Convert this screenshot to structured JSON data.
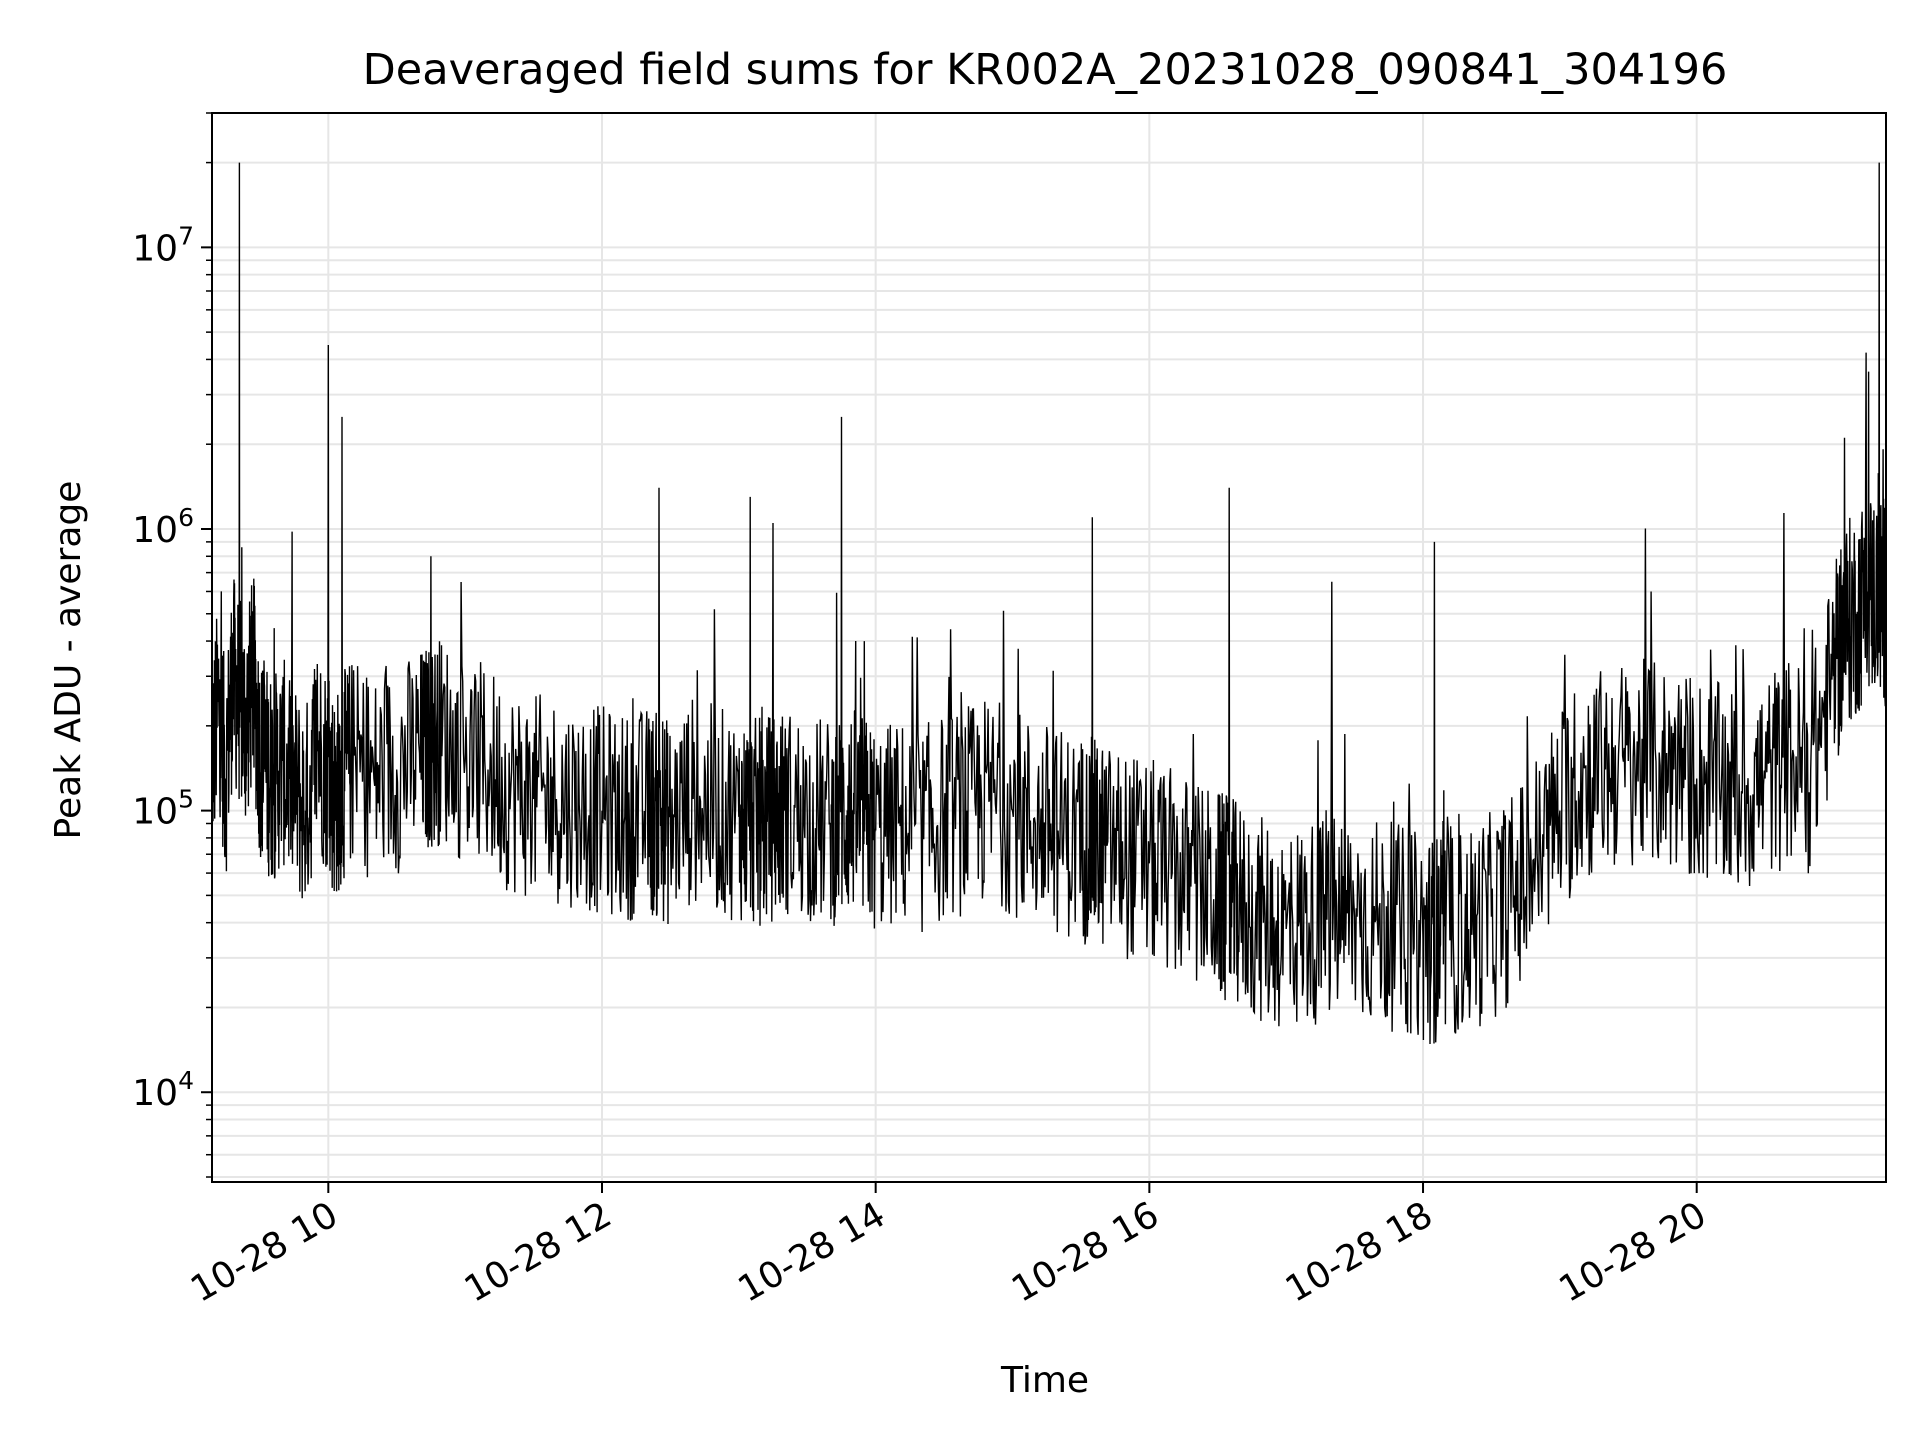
{
  "chart_data": {
    "type": "line",
    "title": "Deaveraged field sums for KR002A_20231028_090841_304196",
    "xlabel": "Time",
    "ylabel": "Peak ADU - average",
    "yscale": "log",
    "xlim": [
      "2023-10-28 09:09",
      "2023-10-28 21:23"
    ],
    "ylim": [
      4800,
      30000000
    ],
    "x_ticks": [
      "10-28 10",
      "10-28 12",
      "10-28 14",
      "10-28 16",
      "10-28 18",
      "10-28 20"
    ],
    "y_ticks": [
      {
        "base": "10",
        "exp": "4"
      },
      {
        "base": "10",
        "exp": "5"
      },
      {
        "base": "10",
        "exp": "6"
      },
      {
        "base": "10",
        "exp": "7"
      }
    ],
    "grid": true,
    "line_color": "#000000",
    "series": [
      {
        "x": [
          "2023-10-28 09:09",
          "2023-10-28 09:12",
          "2023-10-28 09:15",
          "2023-10-28 09:18",
          "2023-10-28 09:21",
          "2023-10-28 09:24",
          "2023-10-28 09:27",
          "2023-10-28 09:30",
          "2023-10-28 09:33",
          "2023-10-28 09:36",
          "2023-10-28 09:40",
          "2023-10-28 09:45",
          "2023-10-28 09:50",
          "2023-10-28 09:55",
          "2023-10-28 10:00",
          "2023-10-28 10:03",
          "2023-10-28 10:06",
          "2023-10-28 10:10",
          "2023-10-28 10:20",
          "2023-10-28 10:30",
          "2023-10-28 10:40",
          "2023-10-28 10:45",
          "2023-10-28 10:50",
          "2023-10-28 11:00",
          "2023-10-28 11:10",
          "2023-10-28 11:20",
          "2023-10-28 11:30",
          "2023-10-28 11:40",
          "2023-10-28 11:50",
          "2023-10-28 12:00",
          "2023-10-28 12:10",
          "2023-10-28 12:20",
          "2023-10-28 12:25",
          "2023-10-28 12:30",
          "2023-10-28 12:40",
          "2023-10-28 12:50",
          "2023-10-28 13:00",
          "2023-10-28 13:05",
          "2023-10-28 13:10",
          "2023-10-28 13:15",
          "2023-10-28 13:20",
          "2023-10-28 13:30",
          "2023-10-28 13:40",
          "2023-10-28 13:45",
          "2023-10-28 13:50",
          "2023-10-28 13:55",
          "2023-10-28 14:00",
          "2023-10-28 14:10",
          "2023-10-28 14:20",
          "2023-10-28 14:30",
          "2023-10-28 14:40",
          "2023-10-28 14:50",
          "2023-10-28 15:00",
          "2023-10-28 15:10",
          "2023-10-28 15:20",
          "2023-10-28 15:30",
          "2023-10-28 15:35",
          "2023-10-28 15:40",
          "2023-10-28 15:50",
          "2023-10-28 16:00",
          "2023-10-28 16:10",
          "2023-10-28 16:20",
          "2023-10-28 16:30",
          "2023-10-28 16:35",
          "2023-10-28 16:40",
          "2023-10-28 16:50",
          "2023-10-28 17:00",
          "2023-10-28 17:10",
          "2023-10-28 17:20",
          "2023-10-28 17:30",
          "2023-10-28 17:40",
          "2023-10-28 17:50",
          "2023-10-28 18:00",
          "2023-10-28 18:05",
          "2023-10-28 18:10",
          "2023-10-28 18:20",
          "2023-10-28 18:30",
          "2023-10-28 18:40",
          "2023-10-28 18:50",
          "2023-10-28 19:00",
          "2023-10-28 19:10",
          "2023-10-28 19:20",
          "2023-10-28 19:30",
          "2023-10-28 19:40",
          "2023-10-28 19:50",
          "2023-10-28 20:00",
          "2023-10-28 20:10",
          "2023-10-28 20:20",
          "2023-10-28 20:30",
          "2023-10-28 20:40",
          "2023-10-28 20:50",
          "2023-10-28 21:00",
          "2023-10-28 21:05",
          "2023-10-28 21:10",
          "2023-10-28 21:15",
          "2023-10-28 21:20",
          "2023-10-28 21:23"
        ],
        "y": [
          150000,
          250000,
          130000,
          300000,
          20000000,
          200000,
          300000,
          160000,
          140000,
          130000,
          150000,
          120000,
          100000,
          170000,
          4500000,
          110000,
          2500000,
          150000,
          130000,
          140000,
          160000,
          800000,
          180000,
          150000,
          140000,
          120000,
          110000,
          110000,
          105000,
          100000,
          95000,
          100000,
          1400000,
          90000,
          110000,
          100000,
          95000,
          1300000,
          90000,
          1050000,
          100000,
          95000,
          90000,
          2500000,
          100000,
          400000,
          85000,
          90000,
          85000,
          95000,
          100000,
          110000,
          100000,
          90000,
          85000,
          80000,
          1100000,
          75000,
          70000,
          65000,
          60000,
          55000,
          50000,
          1400000,
          45000,
          40000,
          38000,
          40000,
          650000,
          42000,
          40000,
          38000,
          35000,
          900000,
          35000,
          38000,
          42000,
          50000,
          70000,
          100000,
          130000,
          140000,
          150000,
          600000,
          140000,
          130000,
          120000,
          115000,
          130000,
          150000,
          140000,
          300000,
          450000,
          500000,
          600000,
          20000000,
          550000
        ]
      }
    ]
  }
}
